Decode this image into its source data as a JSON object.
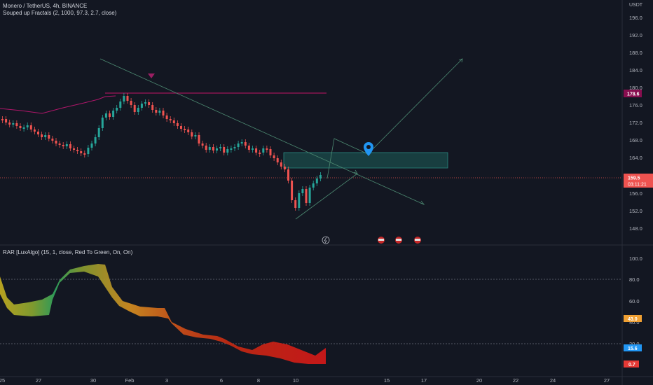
{
  "header": {
    "symbol_line": "Monero / TetherUS, 4h, BINANCE",
    "indicator_line": "Souped up Fractals (2, 1000, 97.3, 2.7, close)",
    "currency": "USDT"
  },
  "oscillator": {
    "title": "RAR [LuxAlgo] (15, 1, close, Red To Green, On, On)"
  },
  "price_axis": {
    "ticks": [
      "196.0",
      "192.0",
      "188.0",
      "184.0",
      "180.0",
      "176.0",
      "172.0",
      "168.0",
      "164.0",
      "160.0",
      "156.0",
      "152.0",
      "148.0"
    ],
    "resistance_badge": "178.6",
    "current_price": "159.5",
    "countdown": "03:11:21"
  },
  "osc_axis": {
    "ticks": [
      "100.0",
      "80.0",
      "60.0",
      "40.0",
      "20.0"
    ],
    "badges": [
      "43.0",
      "15.6",
      "0.7"
    ]
  },
  "time_axis": {
    "labels": [
      "25",
      "27",
      "30",
      "Feb",
      "3",
      "6",
      "8",
      "10",
      "15",
      "17",
      "20",
      "22",
      "24",
      "27"
    ]
  },
  "colors": {
    "background": "#131722",
    "up_candle": "#26a69a",
    "down_candle": "#ef5350",
    "resistance": "#880e4f",
    "zone": "#1e5f5a",
    "marker": "#2196f3",
    "badge_orange": "#f0a033",
    "badge_blue": "#2196f3",
    "badge_red": "#e53935"
  },
  "events": [
    "lightning-icon",
    "flag-icon",
    "flag-icon",
    "flag-icon"
  ]
}
